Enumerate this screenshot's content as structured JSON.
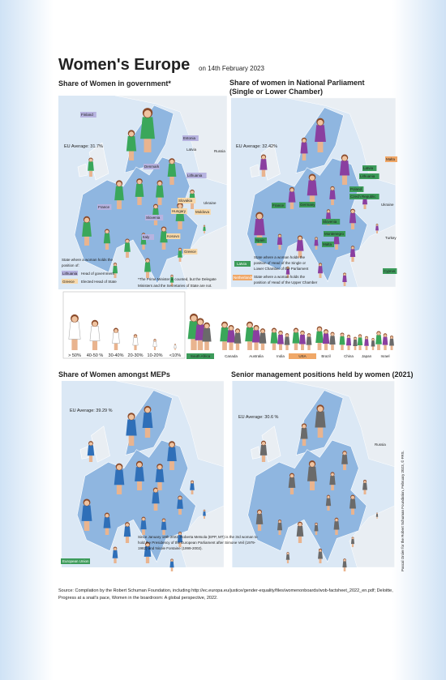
{
  "header": {
    "title": "Women's Europe",
    "date": "on 14th February 2023"
  },
  "government": {
    "title": "Share of Women in government*",
    "eu_average": "EU Average: 31.7%",
    "labels": [
      "Finland",
      "Estonia",
      "Russia",
      "Latvia",
      "Denmark",
      "Lithuania",
      "Slovakia",
      "Ukraine",
      "France",
      "Hungary",
      "Moldova",
      "Slovenia",
      "Kosovo",
      "Italy",
      "Greece"
    ],
    "legend_intro": [
      "State where a woman holds the",
      "position of:"
    ],
    "legend_items": [
      {
        "key": "Lithuania",
        "text": "Head of government"
      },
      {
        "key": "Greece",
        "text": "Elected Head of State"
      }
    ],
    "note": [
      "*The Prime Minister is counted, but the Delegate",
      "Ministers and the Secretaries of State are not."
    ]
  },
  "parliament": {
    "title": [
      "Share of women in National Parliament",
      "(Single or Lower Chamber)"
    ],
    "eu_average": "EU Average: 32.42%",
    "labels": [
      "Malta",
      "Latvia",
      "Lithuania",
      "Poland",
      "Czech Republic",
      "France",
      "Germany",
      "Ukraine",
      "Slovenia",
      "Montenegro",
      "Spain",
      "Turkey",
      "Malta",
      "Cyprus"
    ],
    "legend_items": [
      {
        "key": "Latvia",
        "text": [
          "State where a woman holds the",
          "position of Head of the Single or",
          "Lower Chamber of the Parliament"
        ]
      },
      {
        "key": "Netherlands",
        "text": [
          "State where a woman holds the",
          "position of Head of the Upper Chamber"
        ]
      }
    ]
  },
  "scale": [
    "> 50%",
    "40-50 %",
    "30-40%",
    "20-30%",
    "10-20%",
    "<10%"
  ],
  "world": [
    "South Africa",
    "Canada",
    "Australia",
    "India",
    "USA",
    "Brazil",
    "China",
    "Japan",
    "Israel"
  ],
  "meps": {
    "title": "Share of Women amongst MEPs",
    "eu_average": "EU Average: 39.29 %",
    "eu_label": "European Union",
    "note": [
      "Since January 18th 2022, Roberta Metsola (EPP, MT) is the 3rd woman to",
      "hold the Presidency of the European Parliament after Simone Veil (1979-",
      "1982) and Nicole Fontaine (1999-2002)."
    ]
  },
  "management": {
    "title": "Senior management positions held by women (2021)",
    "eu_average": "EU Average: 30.6 %",
    "labels": [
      "Russia"
    ]
  },
  "source": [
    "Source: Compilation by the Robert Schuman Foundation, including http://ec.europa.eu/justice/gender-equality/files/womenonboards/wob-factsheet_2022_en.pdf; Deloitte,",
    "Progress at a snail's pace, Women in the boardroom: A global perspective, 2022."
  ],
  "credit": "Pascal Orcier for the Robert Schuman Foundation, February 2023, © FRS."
}
